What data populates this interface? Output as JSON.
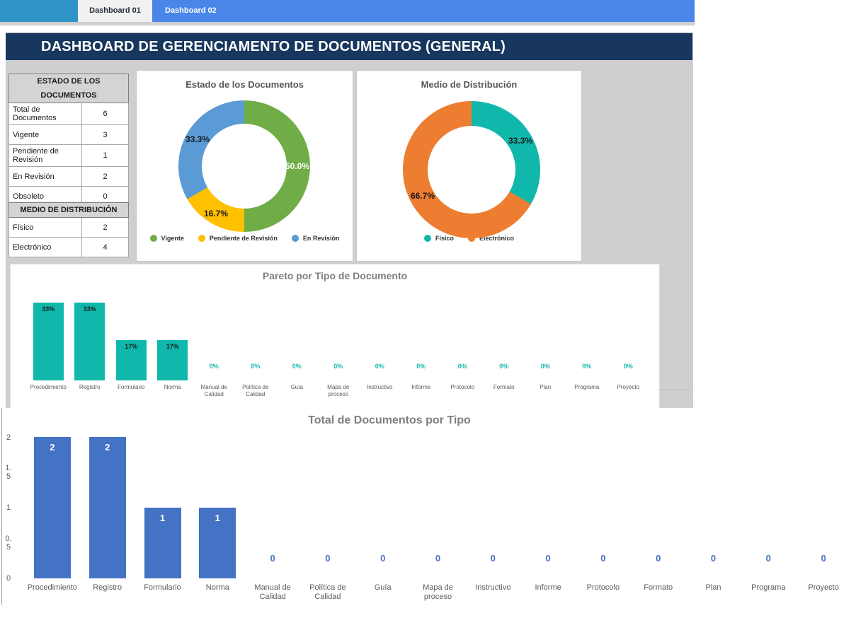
{
  "tabs": {
    "tab1": "Dashboard 01",
    "tab2": "Dashboard 02",
    "left_fill_color": "#2E93C6",
    "bar_color": "#4A86E8"
  },
  "header": {
    "title": "DASHBOARD DE GERENCIAMENTO DE DOCUMENTOS (GENERAL)",
    "bg_color": "#17375E"
  },
  "tables": {
    "estado": {
      "title": "ESTADO DE LOS DOCUMENTOS",
      "rows": [
        {
          "label": "Total de Documentos",
          "value": "6",
          "tall": true
        },
        {
          "label": "Vigente",
          "value": "3",
          "tall": false
        },
        {
          "label": "Pendiente de Revisión",
          "value": "1",
          "tall": true
        },
        {
          "label": "En Revisión",
          "value": "2",
          "tall": false
        },
        {
          "label": "Obsoleto",
          "value": "0",
          "tall": false
        }
      ]
    },
    "medio": {
      "title": "MEDIO DE DISTRIBUCIÓN",
      "rows": [
        {
          "label": "Físico",
          "value": "2",
          "tall": false
        },
        {
          "label": "Electrónico",
          "value": "4",
          "tall": false
        }
      ]
    }
  },
  "chart_data": [
    {
      "type": "pie",
      "subtype": "donut",
      "title": "Estado de los Documentos",
      "labels": [
        "Vigente",
        "Pendiente de Revisión",
        "En Revisión"
      ],
      "values": [
        3,
        1,
        2
      ],
      "pct_labels": [
        "50.0%",
        "16.7%",
        "33.3%"
      ],
      "colors": [
        "#70AD47",
        "#FFC000",
        "#5B9BD5"
      ],
      "legend_position": "bottom"
    },
    {
      "type": "pie",
      "subtype": "donut",
      "title": "Medio de Distribución",
      "labels": [
        "Físico",
        "Electrónico"
      ],
      "values": [
        2,
        4
      ],
      "pct_labels": [
        "33.3%",
        "66.7%"
      ],
      "colors": [
        "#0FB8AB",
        "#ED7D31"
      ],
      "legend_position": "bottom"
    },
    {
      "type": "bar",
      "title": "Pareto por Tipo de Documento",
      "categories": [
        "Procedimiento",
        "Registro",
        "Formulario",
        "Norma",
        "Manual de Calidad",
        "Política de Calidad",
        "Guía",
        "Mapa de proceso",
        "Instructivo",
        "Informe",
        "Protocolo",
        "Formato",
        "Plan",
        "Programa",
        "Proyecto"
      ],
      "values": [
        33,
        33,
        17,
        17,
        0,
        0,
        0,
        0,
        0,
        0,
        0,
        0,
        0,
        0,
        0
      ],
      "labels": [
        "33%",
        "33%",
        "17%",
        "17%",
        "0%",
        "0%",
        "0%",
        "0%",
        "0%",
        "0%",
        "0%",
        "0%",
        "0%",
        "0%",
        "0%"
      ],
      "bar_color": "#0FB8AB",
      "xlabel": "",
      "ylabel": "",
      "ylim": [
        0,
        40
      ],
      "grid": false,
      "legend_position": "none"
    },
    {
      "type": "bar",
      "title": "Total de Documentos por Tipo",
      "categories": [
        "Procedimiento",
        "Registro",
        "Formulario",
        "Norma",
        "Manual de Calidad",
        "Política de Calidad",
        "Guía",
        "Mapa de proceso",
        "Instructivo",
        "Informe",
        "Protocolo",
        "Formato",
        "Plan",
        "Programa",
        "Proyecto"
      ],
      "values": [
        2,
        2,
        1,
        1,
        0,
        0,
        0,
        0,
        0,
        0,
        0,
        0,
        0,
        0,
        0
      ],
      "labels": [
        "2",
        "2",
        "1",
        "1",
        "0",
        "0",
        "0",
        "0",
        "0",
        "0",
        "0",
        "0",
        "0",
        "0",
        "0"
      ],
      "yticks": [
        "2",
        "1.5",
        "1",
        "0.5",
        "0"
      ],
      "ytick_display": [
        "2",
        "1.\n5",
        "1",
        "0.\n5",
        "0"
      ],
      "bar_color": "#4472C4",
      "xlabel": "",
      "ylabel": "",
      "ylim": [
        0,
        2
      ],
      "grid": false,
      "legend_position": "none"
    }
  ]
}
